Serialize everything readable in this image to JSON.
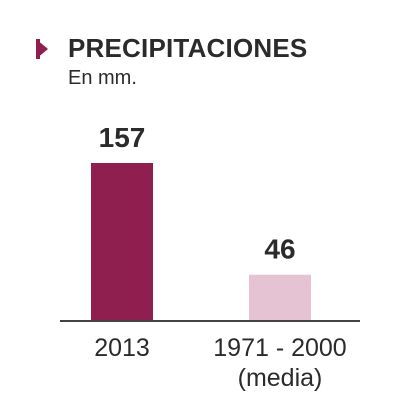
{
  "chart_data": {
    "type": "bar",
    "title": "PRECIPITACIONES",
    "subtitle": "En mm.",
    "categories": [
      [
        "2013"
      ],
      [
        "1971 - 2000",
        "(media)"
      ]
    ],
    "values": [
      157,
      46
    ],
    "data_labels": [
      "157",
      "46"
    ],
    "ylim": [
      0,
      157
    ],
    "grid": false,
    "legend": "none",
    "colors": [
      "#8e1f4f",
      "#e6c3d2"
    ],
    "axis_color": "#444444",
    "marker_color": "#8e1f4f"
  }
}
